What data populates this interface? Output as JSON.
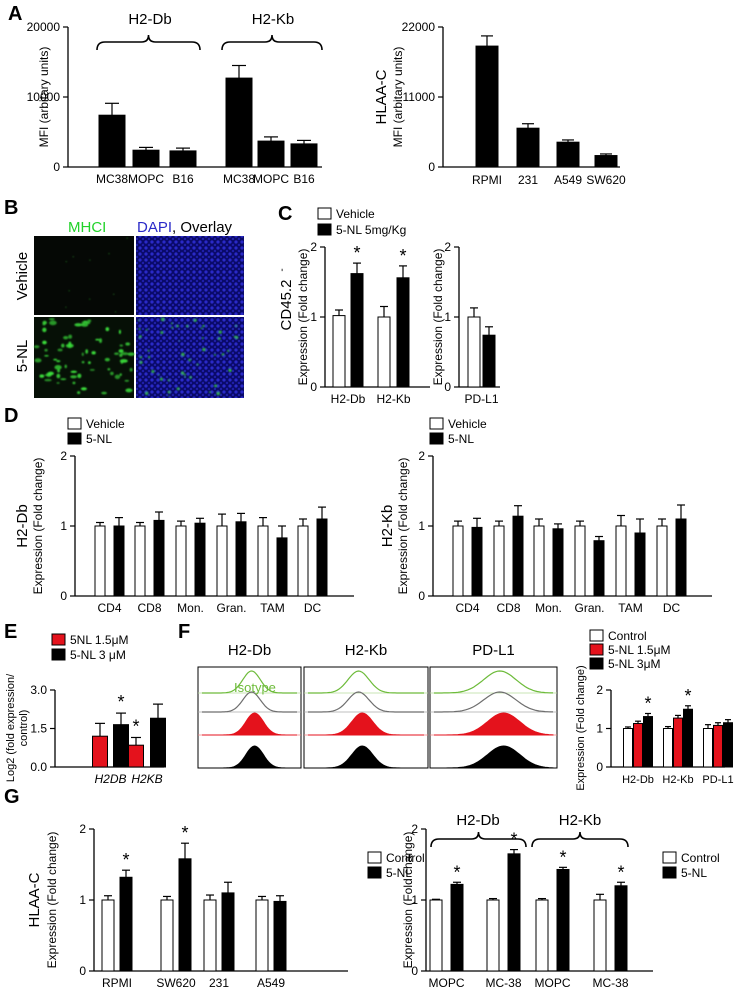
{
  "colors": {
    "black": "#000000",
    "white": "#ffffff",
    "red": "#e4121c",
    "green": "#22d22a",
    "blue": "#2a2ac8",
    "isotype": "#6dbb3a",
    "grey": "#6e6e6e"
  },
  "panels": {
    "A": "A",
    "B": "B",
    "C": "C",
    "D": "D",
    "E": "E",
    "F": "F",
    "G": "G"
  },
  "micro": {
    "mhci": "MHCI",
    "dapi": "DAPI",
    "overlay": ", Overlay",
    "row_vehicle": "Vehicle",
    "row_5nl": "5-NL"
  },
  "flow": {
    "titles": [
      "H2-Db",
      "H2-Kb",
      "PD-L1"
    ],
    "isotype_label": "Isotype"
  },
  "chart_data": [
    {
      "id": "A1",
      "type": "bar",
      "ylabel": "MFI (arbitary units)",
      "ylim": [
        0,
        20000
      ],
      "yticks": [
        "0",
        "10000",
        "20000"
      ],
      "categories": [
        "MC38",
        "MOPC",
        "B16",
        "MC38",
        "MOPC",
        "B16"
      ],
      "values": [
        7400,
        2400,
        2300,
        12700,
        3700,
        3300
      ],
      "errors": [
        1700,
        400,
        400,
        1800,
        600,
        500
      ],
      "groups": [
        "H2-Db",
        "H2-Kb"
      ]
    },
    {
      "id": "A2",
      "type": "bar",
      "ylabel": "MFI (arbitary units)",
      "ylabel2": "HLAA-C",
      "ylim": [
        0,
        22000
      ],
      "yticks": [
        "0",
        "11000",
        "22000"
      ],
      "categories": [
        "RPMI",
        "231",
        "A549",
        "SW620"
      ],
      "values": [
        19000,
        6100,
        3900,
        1800
      ],
      "errors": [
        1600,
        700,
        350,
        250
      ]
    },
    {
      "id": "C1",
      "type": "bar",
      "ylabel": "Expression (Fold change)",
      "ylabel2": "CD45.2",
      "ylabel2_sup": "-",
      "ylim": [
        0,
        2
      ],
      "yticks": [
        "0",
        "1",
        "2"
      ],
      "categories": [
        "H2-Db",
        "H2-Kb"
      ],
      "legend": [
        "Vehicle",
        "5-NL 5mg/Kg"
      ],
      "series": [
        {
          "name": "Vehicle",
          "values": [
            1.02,
            1.0
          ],
          "errors": [
            0.08,
            0.15
          ]
        },
        {
          "name": "5-NL 5mg/Kg",
          "values": [
            1.62,
            1.56
          ],
          "errors": [
            0.15,
            0.17
          ]
        }
      ],
      "stars": [
        "*",
        "*"
      ]
    },
    {
      "id": "C2",
      "type": "bar",
      "ylabel": "Expression (Fold change)",
      "ylim": [
        0,
        2
      ],
      "yticks": [
        "0",
        "1",
        "2"
      ],
      "categories": [
        "PD-L1"
      ],
      "series": [
        {
          "name": "Vehicle",
          "values": [
            1.0
          ],
          "errors": [
            0.13
          ]
        },
        {
          "name": "5-NL",
          "values": [
            0.74
          ],
          "errors": [
            0.12
          ]
        }
      ]
    },
    {
      "id": "D1",
      "type": "bar",
      "ylabel": "Expression (Fold change)",
      "ylabel2": "H2-Db",
      "ylim": [
        0,
        2
      ],
      "yticks": [
        "0",
        "1",
        "2"
      ],
      "categories": [
        "CD4",
        "CD8",
        "Mon.",
        "Gran.",
        "TAM",
        "DC"
      ],
      "legend": [
        "Vehicle",
        "5-NL"
      ],
      "series": [
        {
          "name": "Vehicle",
          "values": [
            1.0,
            1.0,
            1.0,
            1.0,
            1.0,
            1.0
          ],
          "errors": [
            0.05,
            0.05,
            0.07,
            0.17,
            0.12,
            0.1
          ]
        },
        {
          "name": "5-NL",
          "values": [
            1.0,
            1.08,
            1.04,
            1.06,
            0.83,
            1.1
          ],
          "errors": [
            0.12,
            0.12,
            0.07,
            0.12,
            0.17,
            0.17
          ]
        }
      ]
    },
    {
      "id": "D2",
      "type": "bar",
      "ylabel": "Expression (Fold change)",
      "ylabel2": "H2-Kb",
      "ylim": [
        0,
        2
      ],
      "yticks": [
        "0",
        "1",
        "2"
      ],
      "categories": [
        "CD4",
        "CD8",
        "Mon.",
        "Gran.",
        "TAM",
        "DC"
      ],
      "legend": [
        "Vehicle",
        "5-NL"
      ],
      "series": [
        {
          "name": "Vehicle",
          "values": [
            1.0,
            1.0,
            1.0,
            1.0,
            1.0,
            1.0
          ],
          "errors": [
            0.07,
            0.07,
            0.1,
            0.07,
            0.15,
            0.1
          ]
        },
        {
          "name": "5-NL",
          "values": [
            0.98,
            1.14,
            0.96,
            0.79,
            0.9,
            1.1
          ],
          "errors": [
            0.13,
            0.15,
            0.07,
            0.06,
            0.2,
            0.2
          ]
        }
      ]
    },
    {
      "id": "E",
      "type": "bar",
      "ylabel": "Log2 (fold expression/",
      "ylabel_b": "control)",
      "ylim": [
        0,
        3.0
      ],
      "yticks": [
        "0.0",
        "1.5",
        "3.0"
      ],
      "categories": [
        "H2DB",
        "H2KB"
      ],
      "legend": [
        "5NL 1.5μM",
        "5-NL 3 μM"
      ],
      "series": [
        {
          "name": "5NL 1.5μM",
          "values": [
            1.2,
            0.85
          ],
          "errors": [
            0.5,
            0.3
          ]
        },
        {
          "name": "5-NL 3 μM",
          "values": [
            1.65,
            1.9
          ],
          "errors": [
            0.45,
            0.55
          ]
        }
      ],
      "stars": [
        "*",
        "*"
      ]
    },
    {
      "id": "F",
      "type": "bar",
      "ylabel": "Expression (Fold change)",
      "ylim": [
        0,
        2
      ],
      "yticks": [
        "0",
        "1",
        "2"
      ],
      "categories": [
        "H2-Db",
        "H2-Kb",
        "PD-L1"
      ],
      "legend": [
        "Control",
        "5-NL 1.5μM",
        "5-NL 3μM"
      ],
      "series": [
        {
          "name": "Control",
          "values": [
            1.0,
            1.0,
            1.0
          ],
          "errors": [
            0.04,
            0.05,
            0.1
          ]
        },
        {
          "name": "5-NL 1.5μM",
          "values": [
            1.13,
            1.27,
            1.08
          ],
          "errors": [
            0.06,
            0.07,
            0.07
          ]
        },
        {
          "name": "5-NL 3μM",
          "values": [
            1.31,
            1.5,
            1.15
          ],
          "errors": [
            0.08,
            0.09,
            0.08
          ]
        }
      ],
      "stars": [
        "*",
        "*"
      ]
    },
    {
      "id": "G1",
      "type": "bar",
      "ylabel": "Expression (Fold change)",
      "ylabel2": "HLAA-C",
      "ylim": [
        0,
        2
      ],
      "yticks": [
        "0",
        "1",
        "2"
      ],
      "categories": [
        "RPMI",
        "SW620",
        "231",
        "A549"
      ],
      "legend": [
        "Control",
        "5-NL"
      ],
      "series": [
        {
          "name": "Control",
          "values": [
            1.0,
            1.0,
            1.0,
            1.0
          ],
          "errors": [
            0.06,
            0.05,
            0.07,
            0.05
          ]
        },
        {
          "name": "5-NL",
          "values": [
            1.32,
            1.58,
            1.1,
            0.98
          ],
          "errors": [
            0.1,
            0.22,
            0.15,
            0.08
          ]
        }
      ],
      "stars": [
        "*",
        "*"
      ]
    },
    {
      "id": "G2",
      "type": "bar",
      "ylabel": "Expression (Fold change)",
      "ylim": [
        0,
        2
      ],
      "yticks": [
        "0",
        "1",
        "2"
      ],
      "categories": [
        "MOPC",
        "MC-38",
        "MOPC",
        "MC-38"
      ],
      "groups": [
        "H2-Db",
        "H2-Kb"
      ],
      "legend": [
        "Control",
        "5-NL"
      ],
      "series": [
        {
          "name": "Control",
          "values": [
            1.0,
            1.0,
            1.0,
            1.0
          ],
          "errors": [
            0.01,
            0.02,
            0.02,
            0.08
          ]
        },
        {
          "name": "5-NL",
          "values": [
            1.22,
            1.65,
            1.43,
            1.2
          ],
          "errors": [
            0.03,
            0.06,
            0.03,
            0.05
          ]
        }
      ],
      "stars": [
        "*",
        "*",
        "*",
        "*"
      ]
    }
  ]
}
